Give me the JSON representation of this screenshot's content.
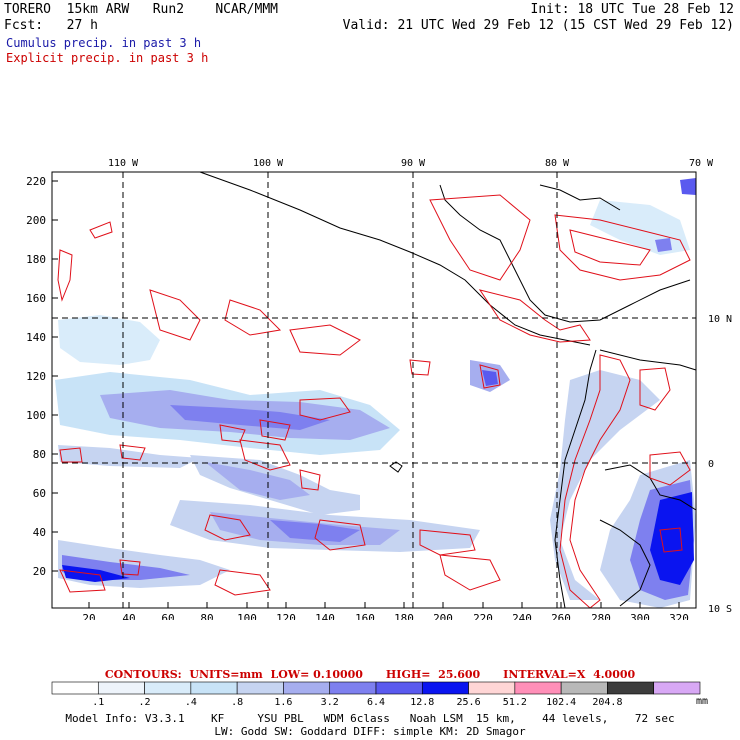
{
  "header": {
    "model": "TORERO",
    "resolution": "15km ARW",
    "run": "Run2",
    "center": "NCAR/MMM",
    "init": "Init: 18 UTC Tue 28 Feb 12",
    "fcst_label": "Fcst:",
    "fcst_value": "27 h",
    "valid": "Valid: 21 UTC Wed 29 Feb 12 (15 CST Wed 29 Feb 12)"
  },
  "fields": {
    "cumulus": "Cumulus precip. in past 3 h",
    "explicit": "Explicit precip. in past 3 h"
  },
  "map": {
    "top_lon_labels": [
      "110 W",
      "100 W",
      "90 W",
      "80 W",
      "70 W"
    ],
    "right_lat_labels": [
      "10 N",
      "0",
      "10 S"
    ],
    "y_grid_labels": [
      "220",
      "200",
      "180",
      "160",
      "140",
      "120",
      "100",
      "80",
      "60",
      "40",
      "20"
    ],
    "x_grid_labels": [
      "20",
      "40",
      "60",
      "80",
      "100",
      "120",
      "140",
      "160",
      "180",
      "200",
      "220",
      "240",
      "260",
      "280",
      "300",
      "320"
    ]
  },
  "colorbar": {
    "thresholds": [
      ".1",
      ".2",
      ".4",
      ".8",
      "1.6",
      "3.2",
      "6.4",
      "12.8",
      "25.6",
      "51.2",
      "102.4",
      "204.8"
    ],
    "unit": "mm",
    "colors": [
      "#ffffff",
      "#eef4fb",
      "#d9ecfa",
      "#c8e3f7",
      "#c6d4f1",
      "#a6aeef",
      "#7e80ef",
      "#5a5aef",
      "#0a14f0",
      "#ffd6d6",
      "#ff8fb8",
      "#b8b8b8",
      "#3c3c3c",
      "#d8a8f5"
    ]
  },
  "contours": {
    "text": "CONTOURS:  UNITS=mm  LOW= 0.10000      HIGH=  25.600      INTERVAL=X  4.0000"
  },
  "footer": {
    "line1": "Model Info: V3.3.1    KF     YSU PBL   WDM 6class   Noah LSM  15 km,    44 levels,    72 sec",
    "line2": "LW: Godd SW: Goddard DIFF: simple KM: 2D Smagor"
  }
}
